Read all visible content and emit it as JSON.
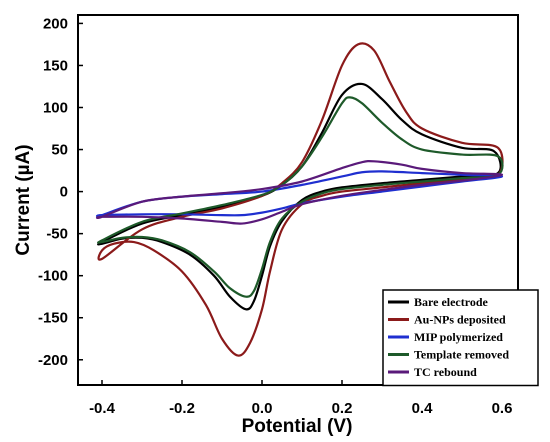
{
  "chart_data": {
    "type": "line",
    "title": "",
    "xlabel": "Potential (V)",
    "ylabel": "Current (µA)",
    "xlim": [
      -0.46,
      0.64
    ],
    "ylim": [
      -230,
      210
    ],
    "x_ticks": [
      {
        "value": -0.4,
        "label": "-0.4"
      },
      {
        "value": -0.2,
        "label": "-0.2"
      },
      {
        "value": 0.0,
        "label": "0.0"
      },
      {
        "value": 0.2,
        "label": "0.2"
      },
      {
        "value": 0.4,
        "label": "0.4"
      },
      {
        "value": 0.6,
        "label": "0.6"
      }
    ],
    "y_ticks": [
      {
        "value": 200,
        "label": "200"
      },
      {
        "value": 150,
        "label": "150"
      },
      {
        "value": 100,
        "label": "100"
      },
      {
        "value": 50,
        "label": "50"
      },
      {
        "value": 0,
        "label": "0"
      },
      {
        "value": -50,
        "label": "-50"
      },
      {
        "value": -100,
        "label": "-100"
      },
      {
        "value": -150,
        "label": "-150"
      },
      {
        "value": -200,
        "label": "-200"
      }
    ],
    "grid": false,
    "legend_position": "bottom-right",
    "series": [
      {
        "name": "Bare electrode",
        "color": "#000000",
        "points": [
          [
            -0.4,
            -60
          ],
          [
            -0.3,
            -38
          ],
          [
            -0.2,
            -28
          ],
          [
            -0.1,
            -18
          ],
          [
            0.0,
            -5
          ],
          [
            0.05,
            8
          ],
          [
            0.1,
            30
          ],
          [
            0.15,
            70
          ],
          [
            0.2,
            115
          ],
          [
            0.25,
            128
          ],
          [
            0.3,
            110
          ],
          [
            0.35,
            85
          ],
          [
            0.4,
            68
          ],
          [
            0.5,
            52
          ],
          [
            0.58,
            48
          ],
          [
            0.59,
            22
          ],
          [
            0.5,
            18
          ],
          [
            0.4,
            14
          ],
          [
            0.3,
            10
          ],
          [
            0.2,
            5
          ],
          [
            0.15,
            0
          ],
          [
            0.1,
            -10
          ],
          [
            0.05,
            -35
          ],
          [
            0.02,
            -65
          ],
          [
            0.0,
            -100
          ],
          [
            -0.02,
            -130
          ],
          [
            -0.04,
            -140
          ],
          [
            -0.08,
            -125
          ],
          [
            -0.12,
            -100
          ],
          [
            -0.18,
            -75
          ],
          [
            -0.25,
            -60
          ],
          [
            -0.3,
            -55
          ],
          [
            -0.35,
            -56
          ],
          [
            -0.4,
            -62
          ]
        ]
      },
      {
        "name": "Au-NPs deposited",
        "color": "#8b1a1a",
        "points": [
          [
            -0.4,
            -80
          ],
          [
            -0.3,
            -45
          ],
          [
            -0.2,
            -30
          ],
          [
            -0.1,
            -20
          ],
          [
            0.0,
            -5
          ],
          [
            0.05,
            10
          ],
          [
            0.1,
            35
          ],
          [
            0.15,
            85
          ],
          [
            0.2,
            150
          ],
          [
            0.24,
            175
          ],
          [
            0.28,
            168
          ],
          [
            0.32,
            130
          ],
          [
            0.36,
            95
          ],
          [
            0.4,
            75
          ],
          [
            0.5,
            58
          ],
          [
            0.59,
            52
          ],
          [
            0.59,
            20
          ],
          [
            0.5,
            15
          ],
          [
            0.4,
            10
          ],
          [
            0.3,
            5
          ],
          [
            0.2,
            0
          ],
          [
            0.15,
            -5
          ],
          [
            0.1,
            -15
          ],
          [
            0.05,
            -45
          ],
          [
            0.02,
            -95
          ],
          [
            0.0,
            -140
          ],
          [
            -0.03,
            -180
          ],
          [
            -0.06,
            -195
          ],
          [
            -0.1,
            -175
          ],
          [
            -0.14,
            -135
          ],
          [
            -0.2,
            -95
          ],
          [
            -0.27,
            -70
          ],
          [
            -0.32,
            -60
          ],
          [
            -0.37,
            -62
          ],
          [
            -0.4,
            -70
          ]
        ]
      },
      {
        "name": "MIP polymerized",
        "color": "#1f2fd0",
        "points": [
          [
            -0.4,
            -28
          ],
          [
            -0.3,
            -12
          ],
          [
            -0.2,
            -6
          ],
          [
            -0.1,
            -3
          ],
          [
            0.0,
            0
          ],
          [
            0.1,
            8
          ],
          [
            0.2,
            18
          ],
          [
            0.25,
            23
          ],
          [
            0.3,
            24
          ],
          [
            0.4,
            22
          ],
          [
            0.5,
            20
          ],
          [
            0.6,
            18
          ],
          [
            0.5,
            12
          ],
          [
            0.4,
            6
          ],
          [
            0.3,
            0
          ],
          [
            0.2,
            -6
          ],
          [
            0.1,
            -14
          ],
          [
            0.05,
            -20
          ],
          [
            0.0,
            -25
          ],
          [
            -0.05,
            -28
          ],
          [
            -0.1,
            -28
          ],
          [
            -0.2,
            -27
          ],
          [
            -0.3,
            -27
          ],
          [
            -0.4,
            -28
          ]
        ]
      },
      {
        "name": "Template removed",
        "color": "#1e5a2a",
        "points": [
          [
            -0.4,
            -58
          ],
          [
            -0.3,
            -36
          ],
          [
            -0.2,
            -26
          ],
          [
            -0.1,
            -16
          ],
          [
            0.0,
            -4
          ],
          [
            0.05,
            8
          ],
          [
            0.1,
            30
          ],
          [
            0.15,
            65
          ],
          [
            0.2,
            105
          ],
          [
            0.22,
            112
          ],
          [
            0.25,
            105
          ],
          [
            0.3,
            82
          ],
          [
            0.35,
            62
          ],
          [
            0.4,
            50
          ],
          [
            0.5,
            44
          ],
          [
            0.59,
            42
          ],
          [
            0.59,
            20
          ],
          [
            0.5,
            16
          ],
          [
            0.4,
            12
          ],
          [
            0.3,
            8
          ],
          [
            0.2,
            3
          ],
          [
            0.15,
            -2
          ],
          [
            0.1,
            -12
          ],
          [
            0.05,
            -32
          ],
          [
            0.02,
            -60
          ],
          [
            0.0,
            -92
          ],
          [
            -0.02,
            -118
          ],
          [
            -0.04,
            -125
          ],
          [
            -0.08,
            -115
          ],
          [
            -0.12,
            -95
          ],
          [
            -0.18,
            -72
          ],
          [
            -0.25,
            -58
          ],
          [
            -0.3,
            -54
          ],
          [
            -0.35,
            -55
          ],
          [
            -0.4,
            -60
          ]
        ]
      },
      {
        "name": "TC rebound",
        "color": "#5a1a7a",
        "points": [
          [
            -0.4,
            -30
          ],
          [
            -0.3,
            -12
          ],
          [
            -0.2,
            -6
          ],
          [
            -0.1,
            -2
          ],
          [
            0.0,
            3
          ],
          [
            0.1,
            12
          ],
          [
            0.2,
            28
          ],
          [
            0.25,
            35
          ],
          [
            0.28,
            36
          ],
          [
            0.35,
            32
          ],
          [
            0.4,
            27
          ],
          [
            0.5,
            22
          ],
          [
            0.6,
            20
          ],
          [
            0.5,
            13
          ],
          [
            0.4,
            8
          ],
          [
            0.3,
            2
          ],
          [
            0.2,
            -5
          ],
          [
            0.1,
            -15
          ],
          [
            0.05,
            -24
          ],
          [
            0.0,
            -33
          ],
          [
            -0.05,
            -38
          ],
          [
            -0.1,
            -36
          ],
          [
            -0.2,
            -32
          ],
          [
            -0.3,
            -30
          ],
          [
            -0.4,
            -30
          ]
        ]
      }
    ]
  }
}
